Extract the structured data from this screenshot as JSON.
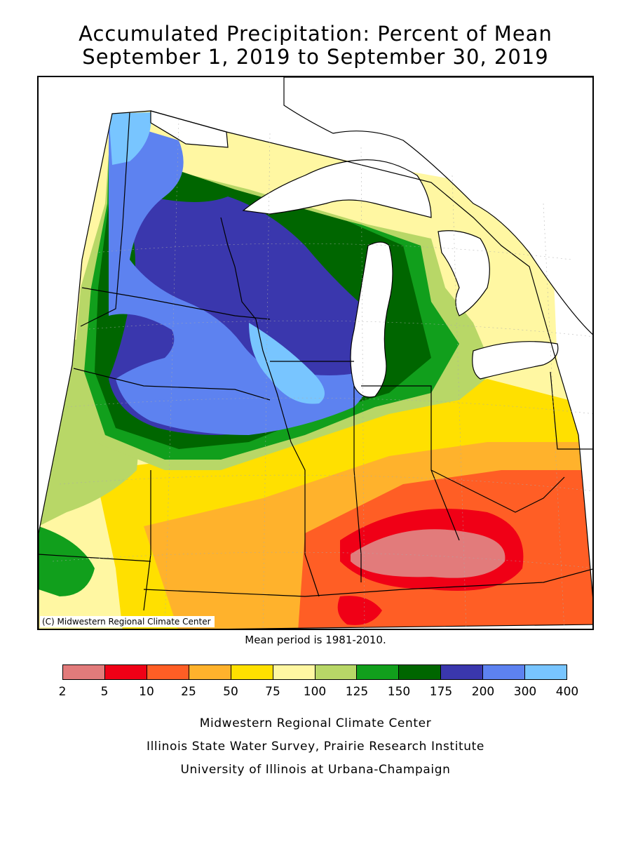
{
  "title_line1": "Accumulated Precipitation: Percent of Mean",
  "title_line2": "September 1, 2019 to September 30, 2019",
  "copyright": "(C) Midwestern Regional Climate Center",
  "mean_period": "Mean period is 1981-2010.",
  "legend": {
    "classes": [
      {
        "from": 2,
        "to": 5,
        "color": "#e27b7b"
      },
      {
        "from": 5,
        "to": 10,
        "color": "#f00016"
      },
      {
        "from": 10,
        "to": 25,
        "color": "#ff5e25"
      },
      {
        "from": 25,
        "to": 50,
        "color": "#ffb22c"
      },
      {
        "from": 50,
        "to": 75,
        "color": "#ffe000"
      },
      {
        "from": 75,
        "to": 100,
        "color": "#fff7a2"
      },
      {
        "from": 100,
        "to": 125,
        "color": "#b8d767"
      },
      {
        "from": 125,
        "to": 150,
        "color": "#119f1c"
      },
      {
        "from": 150,
        "to": 175,
        "color": "#006600"
      },
      {
        "from": 175,
        "to": 200,
        "color": "#3a37ad"
      },
      {
        "from": 200,
        "to": 300,
        "color": "#5d82f0"
      },
      {
        "from": 300,
        "to": 400,
        "color": "#78c5ff"
      }
    ],
    "tick_labels": [
      "2",
      "5",
      "10",
      "25",
      "50",
      "75",
      "100",
      "125",
      "150",
      "175",
      "200",
      "300",
      "400"
    ]
  },
  "map_colors": {
    "water": "#ffffff",
    "boundary": "#000000"
  },
  "credits": {
    "line1": "Midwestern Regional Climate Center",
    "line2": "Illinois State Water Survey, Prairie Research Institute",
    "line3": "University of Illinois at Urbana-Champaign"
  }
}
